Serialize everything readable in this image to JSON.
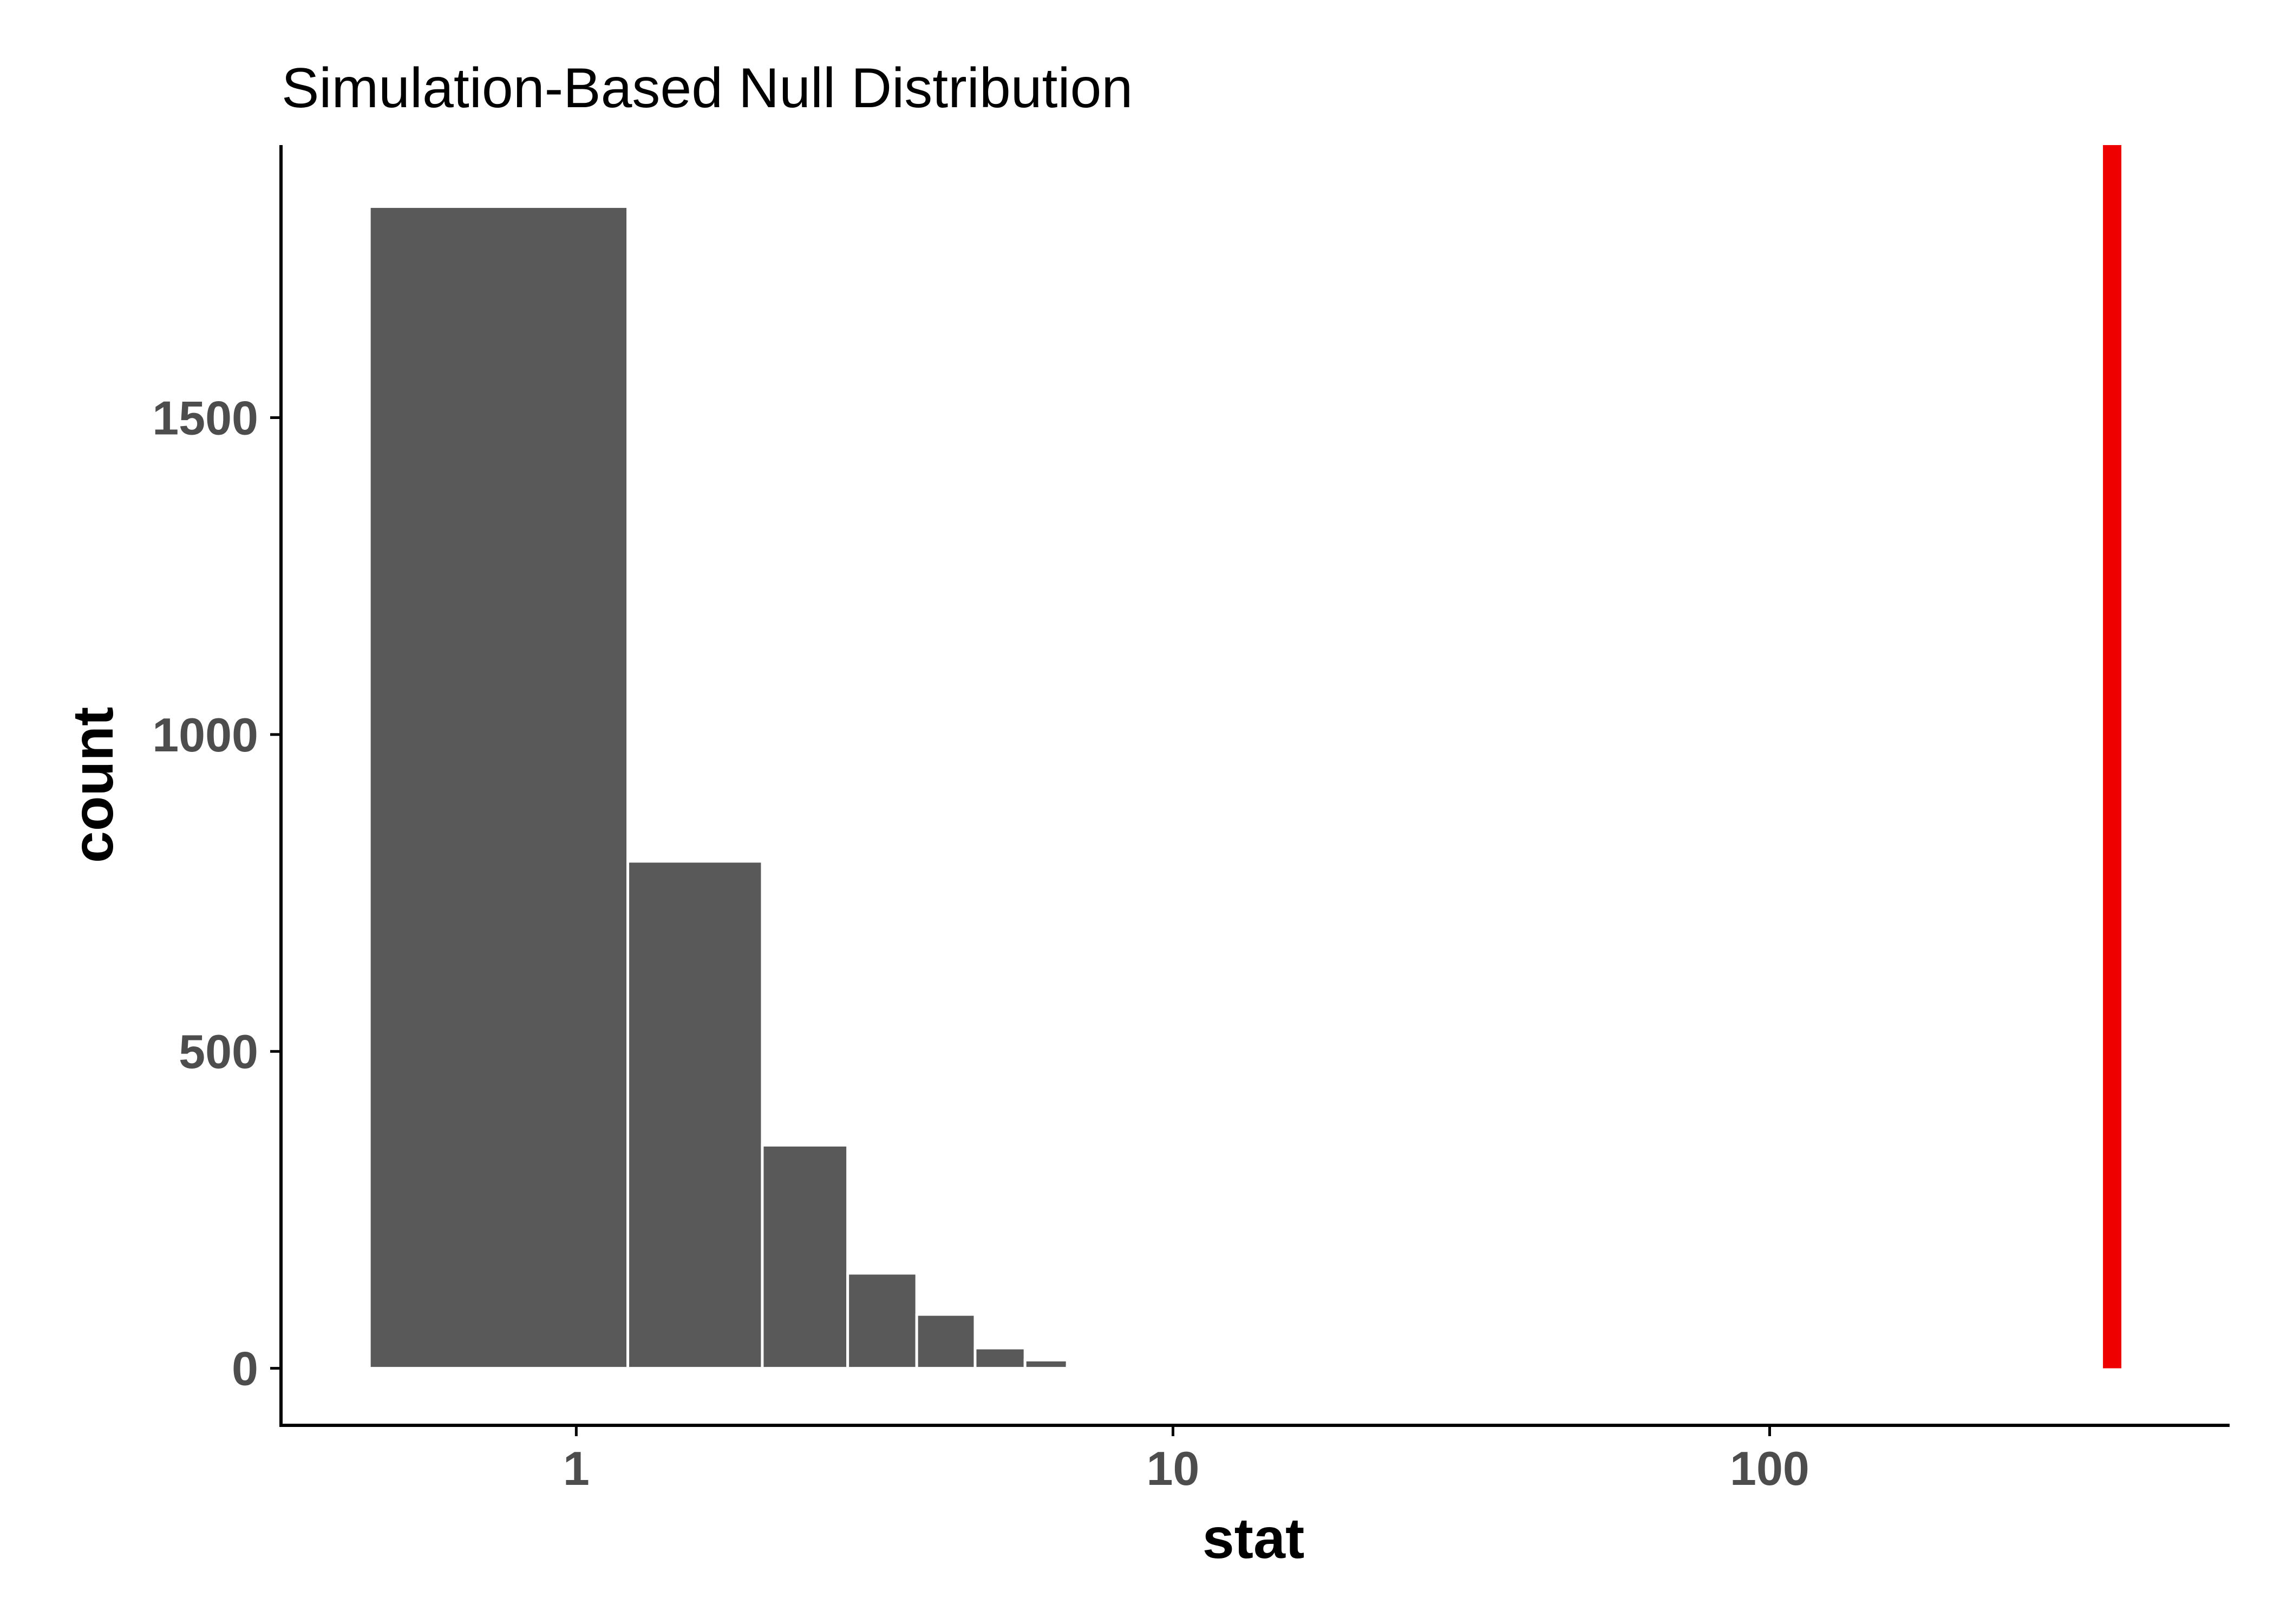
{
  "chart_data": {
    "type": "bar",
    "title": "Simulation-Based Null Distribution",
    "xlabel": "stat",
    "ylabel": "count",
    "x_scale": "log10",
    "xlim": [
      0.32,
      590
    ],
    "ylim": [
      -90,
      1930
    ],
    "x_ticks": [
      1,
      10,
      100
    ],
    "x_tick_labels": [
      "1",
      "10",
      "100"
    ],
    "y_ticks": [
      0,
      500,
      1000,
      1500
    ],
    "y_tick_labels": [
      "0",
      "500",
      "1000",
      "1500"
    ],
    "bins": [
      {
        "x0": 0.45,
        "x1": 1.22,
        "count": 1833
      },
      {
        "x0": 1.22,
        "x1": 2.05,
        "count": 800
      },
      {
        "x0": 2.05,
        "x1": 2.85,
        "count": 352
      },
      {
        "x0": 2.85,
        "x1": 3.72,
        "count": 150
      },
      {
        "x0": 3.72,
        "x1": 4.66,
        "count": 85
      },
      {
        "x0": 4.66,
        "x1": 5.65,
        "count": 32
      },
      {
        "x0": 5.65,
        "x1": 6.65,
        "count": 13
      },
      {
        "x0": 6.65,
        "x1": 7.7,
        "count": 3
      }
    ],
    "observed_stat": 375,
    "observed_color": "#ee0000",
    "bar_color": "#595959",
    "grid": false,
    "legend": "none"
  }
}
